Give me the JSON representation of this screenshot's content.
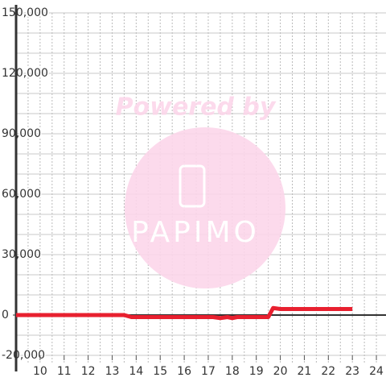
{
  "chart_data": {
    "type": "line",
    "watermark": [
      "Powered by",
      "PAPIMO"
    ],
    "x": [
      9,
      13.5,
      13.8,
      17.2,
      17.5,
      17.8,
      18,
      18.2,
      19.5,
      19.7,
      20,
      23
    ],
    "series": [
      {
        "color": "#e8202f",
        "values": [
          0,
          0,
          -1000,
          -1000,
          -1500,
          -1000,
          -1500,
          -1000,
          -1000,
          3500,
          3000,
          3000
        ]
      }
    ],
    "xlim": [
      9,
      24.4
    ],
    "ylim": [
      -20000,
      150000
    ],
    "xticks": [
      10,
      11,
      12,
      13,
      14,
      15,
      16,
      17,
      18,
      19,
      20,
      21,
      22,
      23,
      24
    ],
    "yticks": [
      {
        "value": -20000,
        "label": "-20,000"
      },
      0,
      {
        "value": 30000,
        "label": "30,000"
      },
      {
        "value": 60000,
        "label": "60,000"
      },
      {
        "value": 90000,
        "label": "90,000"
      },
      {
        "value": 120000,
        "label": "120,000"
      },
      {
        "value": 150000,
        "label": "150,000"
      }
    ],
    "y_grid_step": 10000,
    "x_grid_step": 0.5,
    "grid": true
  }
}
